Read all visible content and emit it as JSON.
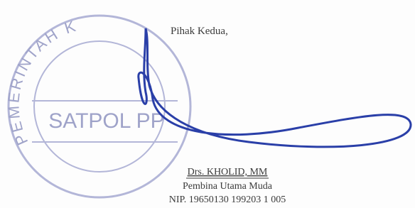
{
  "closing": {
    "label": "Pihak Kedua,"
  },
  "stamp": {
    "arc_text": "PEMERINTAH K",
    "center_text": "SATPOL PP"
  },
  "signatory": {
    "name": "Drs. KHOLID, MM",
    "rank": "Pembina Utama Muda",
    "nip": "NIP. 19650130 199203 1 005"
  }
}
